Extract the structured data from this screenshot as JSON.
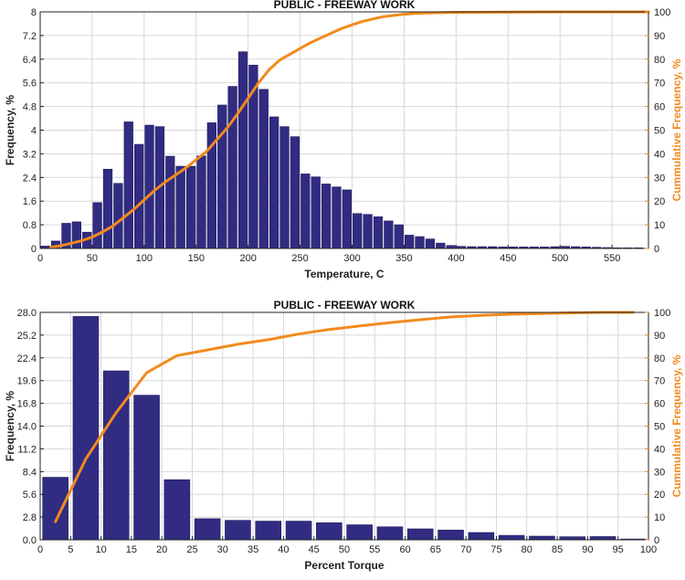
{
  "chart_data": [
    {
      "type": "bar",
      "title": "PUBLIC - FREEWAY WORK",
      "xlabel": "Temperature, C",
      "ylabel": "Frequency, %",
      "y2label": "Cummulative Frequency, %",
      "xlim": [
        0,
        585
      ],
      "ylim": [
        0,
        8
      ],
      "y2lim": [
        0,
        100
      ],
      "xticks": [
        0,
        50,
        100,
        150,
        200,
        250,
        300,
        350,
        400,
        450,
        500,
        550
      ],
      "xtick_labels": [
        "0",
        "50",
        "100",
        "150",
        "200",
        "250",
        "300",
        "350",
        "400",
        "450",
        "500",
        "550"
      ],
      "yticks": [
        0,
        0.8,
        1.6,
        2.4,
        3.2,
        4,
        4.8,
        5.6,
        6.4,
        7.2,
        8
      ],
      "ytick_labels": [
        "0",
        "0.8",
        "1.6",
        "2.4",
        "3.2",
        "4",
        "4.8",
        "5.6",
        "6.4",
        "7.2",
        "8"
      ],
      "y2ticks": [
        0,
        10,
        20,
        30,
        40,
        50,
        60,
        70,
        80,
        90,
        100
      ],
      "y2tick_labels": [
        "0",
        "10",
        "20",
        "30",
        "40",
        "50",
        "60",
        "70",
        "80",
        "90",
        "100"
      ],
      "bar_width": 8.5,
      "grid": true,
      "x": [
        5,
        15,
        25,
        35,
        45,
        55,
        65,
        75,
        85,
        95,
        105,
        115,
        125,
        135,
        145,
        155,
        165,
        175,
        185,
        195,
        205,
        215,
        225,
        235,
        245,
        255,
        265,
        275,
        285,
        295,
        305,
        315,
        325,
        335,
        345,
        355,
        365,
        375,
        385,
        395,
        405,
        415,
        425,
        435,
        445,
        455,
        465,
        475,
        485,
        495,
        505,
        515,
        525,
        535,
        545,
        555,
        565,
        575
      ],
      "values": [
        0.08,
        0.25,
        0.85,
        0.9,
        0.55,
        1.55,
        2.68,
        2.2,
        4.28,
        3.52,
        4.17,
        4.12,
        3.12,
        2.78,
        2.78,
        3.13,
        4.25,
        4.85,
        5.48,
        6.65,
        6.2,
        5.38,
        4.45,
        4.12,
        3.78,
        2.52,
        2.42,
        2.18,
        2.08,
        1.98,
        1.18,
        1.15,
        1.07,
        0.93,
        0.8,
        0.45,
        0.4,
        0.32,
        0.18,
        0.1,
        0.07,
        0.06,
        0.06,
        0.06,
        0.05,
        0.05,
        0.05,
        0.05,
        0.05,
        0.06,
        0.07,
        0.06,
        0.05,
        0.04,
        0.03,
        0.02,
        0.02,
        0.02
      ],
      "cumulative": {
        "name": "Cumulative",
        "color": "#f28a1d",
        "x": [
          10,
          20,
          30,
          40,
          50,
          60,
          70,
          80,
          90,
          100,
          110,
          120,
          130,
          140,
          150,
          160,
          170,
          180,
          190,
          200,
          210,
          220,
          230,
          240,
          250,
          260,
          270,
          280,
          290,
          300,
          310,
          320,
          330,
          340,
          350,
          360,
          370,
          380,
          390,
          400,
          450,
          500,
          550,
          585
        ],
        "values": [
          0.5,
          1.2,
          2.2,
          3.3,
          4.8,
          7,
          9.5,
          13,
          16.5,
          20.5,
          24.5,
          28,
          31,
          34,
          37.5,
          41,
          46,
          51,
          57,
          63.5,
          70,
          75.5,
          79.5,
          82,
          84.5,
          87,
          89,
          91,
          93,
          94.5,
          96,
          97,
          98,
          98.5,
          99,
          99.3,
          99.5,
          99.6,
          99.7,
          99.8,
          99.9,
          100,
          100,
          100
        ]
      }
    },
    {
      "type": "bar",
      "title": "PUBLIC - FREEWAY WORK",
      "xlabel": "Percent Torque",
      "ylabel": "Frequency, %",
      "y2label": "Cummulative Frequency, %",
      "xlim": [
        0,
        100
      ],
      "ylim": [
        0,
        28
      ],
      "y2lim": [
        0,
        100
      ],
      "xticks": [
        0,
        5,
        10,
        15,
        20,
        25,
        30,
        35,
        40,
        45,
        50,
        55,
        60,
        65,
        70,
        75,
        80,
        85,
        90,
        95,
        100
      ],
      "xtick_labels": [
        "0",
        "5",
        "10",
        "15",
        "20",
        "25",
        "30",
        "35",
        "40",
        "45",
        "50",
        "55",
        "60",
        "65",
        "70",
        "75",
        "80",
        "85",
        "90",
        "95",
        "100"
      ],
      "yticks": [
        0,
        2.8,
        5.6,
        8.4,
        11.2,
        14,
        16.8,
        19.6,
        22.4,
        25.2,
        28
      ],
      "ytick_labels": [
        "0.0",
        "2.8",
        "5.6",
        "8.4",
        "11.2",
        "14.0",
        "16.8",
        "19.6",
        "22.4",
        "25.2",
        "28.0"
      ],
      "y2ticks": [
        0,
        10,
        20,
        30,
        40,
        50,
        60,
        70,
        80,
        90,
        100
      ],
      "y2tick_labels": [
        "0",
        "10",
        "20",
        "30",
        "40",
        "50",
        "60",
        "70",
        "80",
        "90",
        "100"
      ],
      "bar_width": 4.2,
      "grid": true,
      "x": [
        2.5,
        7.5,
        12.5,
        17.5,
        22.5,
        27.5,
        32.5,
        37.5,
        42.5,
        47.5,
        52.5,
        57.5,
        62.5,
        67.5,
        72.5,
        77.5,
        82.5,
        87.5,
        92.5,
        97.5
      ],
      "values": [
        7.7,
        27.5,
        20.8,
        17.8,
        7.4,
        2.6,
        2.4,
        2.3,
        2.3,
        2.1,
        1.85,
        1.6,
        1.35,
        1.2,
        0.9,
        0.55,
        0.45,
        0.38,
        0.4,
        0.1
      ],
      "cumulative": {
        "name": "Cumulative",
        "color": "#f28a1d",
        "x": [
          2.5,
          7.5,
          12.5,
          17.5,
          22.5,
          27.5,
          32.5,
          37.5,
          42.5,
          47.5,
          52.5,
          57.5,
          62.5,
          67.5,
          72.5,
          77.5,
          82.5,
          87.5,
          92.5,
          97.5
        ],
        "values": [
          8,
          35.5,
          56,
          73.5,
          81,
          83.5,
          86,
          88,
          90.5,
          92.5,
          94,
          95.5,
          96.8,
          98,
          98.7,
          99.2,
          99.5,
          99.8,
          100,
          100
        ]
      }
    }
  ],
  "colors": {
    "bar_fill": "#312c82",
    "bar_stroke": "#1f1a5e",
    "cumulative_line": "#f28a1d",
    "grid": "#d7d7d7",
    "axis": "#222222"
  }
}
